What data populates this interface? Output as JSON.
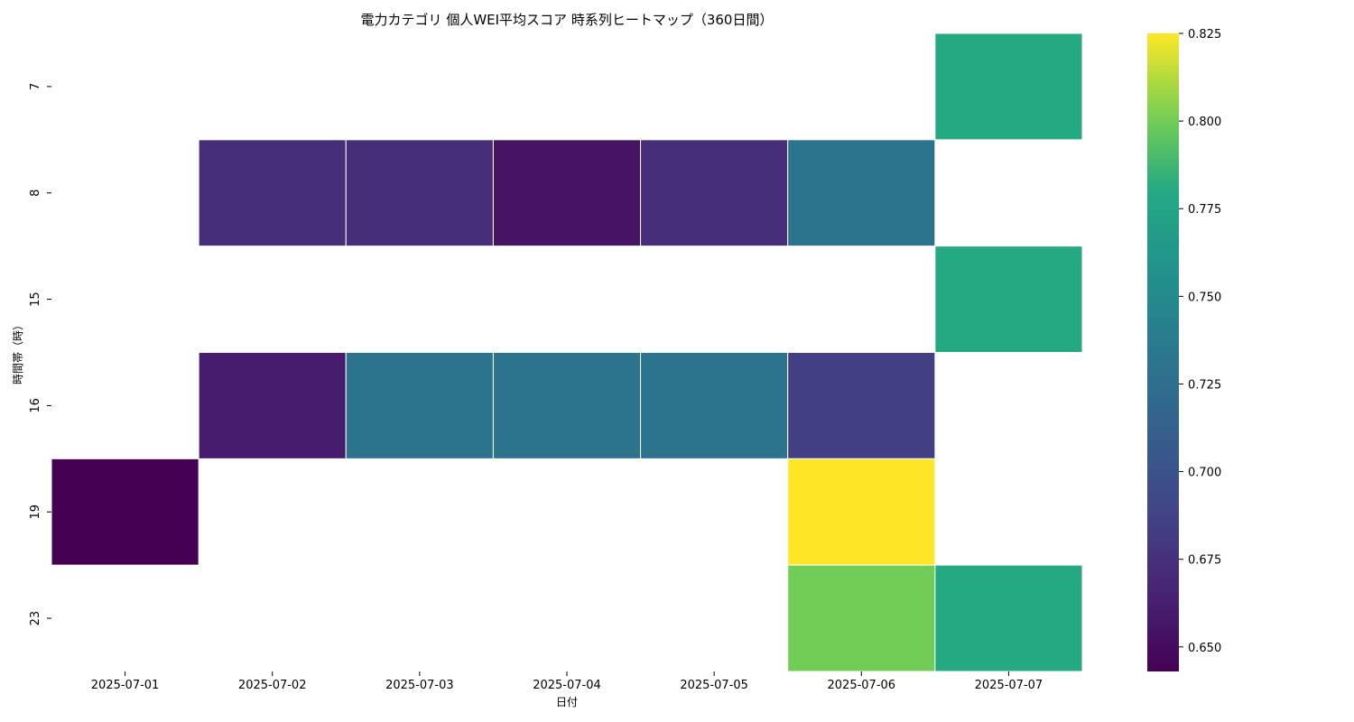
{
  "chart_data": {
    "type": "heatmap",
    "title": "電力カテゴリ 個人WEI平均スコア 時系列ヒートマップ（360日間）",
    "xlabel": "日付",
    "ylabel": "時間帯（時）",
    "x": [
      "2025-07-01",
      "2025-07-02",
      "2025-07-03",
      "2025-07-04",
      "2025-07-05",
      "2025-07-06",
      "2025-07-07"
    ],
    "y": [
      "7",
      "8",
      "15",
      "16",
      "19",
      "23"
    ],
    "values": [
      [
        null,
        null,
        null,
        null,
        null,
        null,
        0.78
      ],
      [
        null,
        0.673,
        0.673,
        0.655,
        0.673,
        0.73,
        null
      ],
      [
        null,
        null,
        null,
        null,
        null,
        null,
        0.78
      ],
      [
        null,
        0.66,
        0.73,
        0.73,
        0.73,
        0.685,
        null
      ],
      [
        0.643,
        null,
        null,
        null,
        null,
        0.825,
        null
      ],
      [
        null,
        null,
        null,
        null,
        null,
        0.8,
        0.78
      ]
    ],
    "colorbar": {
      "vmin": 0.643,
      "vmax": 0.825,
      "ticks": [
        "0.650",
        "0.675",
        "0.700",
        "0.725",
        "0.750",
        "0.775",
        "0.800",
        "0.825"
      ],
      "colormap": "viridis"
    },
    "legend": "right",
    "grid": false
  }
}
